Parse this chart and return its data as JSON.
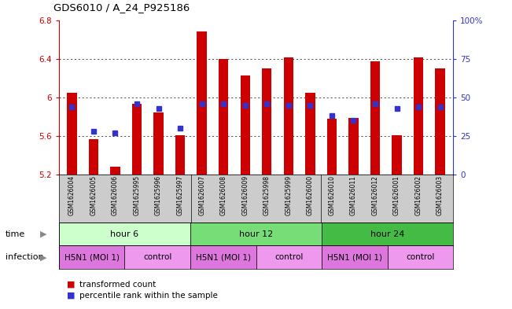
{
  "title": "GDS6010 / A_24_P925186",
  "samples": [
    "GSM1626004",
    "GSM1626005",
    "GSM1626006",
    "GSM1625995",
    "GSM1625996",
    "GSM1625997",
    "GSM1626007",
    "GSM1626008",
    "GSM1626009",
    "GSM1625998",
    "GSM1625999",
    "GSM1626000",
    "GSM1626010",
    "GSM1626011",
    "GSM1626012",
    "GSM1626001",
    "GSM1626002",
    "GSM1626003"
  ],
  "transformed_count": [
    6.05,
    5.57,
    5.28,
    5.93,
    5.84,
    5.61,
    6.68,
    6.4,
    6.23,
    6.3,
    6.41,
    6.05,
    5.78,
    5.79,
    6.37,
    5.61,
    6.41,
    6.3
  ],
  "percentile_rank": [
    44,
    28,
    27,
    46,
    43,
    30,
    46,
    46,
    45,
    46,
    45,
    45,
    38,
    35,
    46,
    43,
    44,
    44
  ],
  "ylim_left": [
    5.2,
    6.8
  ],
  "ylim_right": [
    0,
    100
  ],
  "yticks_left": [
    5.2,
    5.6,
    6.0,
    6.4,
    6.8
  ],
  "ytick_labels_left": [
    "5.2",
    "5.6",
    "6",
    "6.4",
    "6.8"
  ],
  "yticks_right": [
    0,
    25,
    50,
    75,
    100
  ],
  "ytick_labels_right": [
    "0",
    "25",
    "50",
    "75",
    "100%"
  ],
  "bar_color": "#cc0000",
  "dot_color": "#3333cc",
  "bar_width": 0.45,
  "group_colors": [
    "#ccffcc",
    "#77dd77",
    "#44bb44"
  ],
  "groups": [
    {
      "label": "hour 6",
      "start": 0,
      "end": 6
    },
    {
      "label": "hour 12",
      "start": 6,
      "end": 12
    },
    {
      "label": "hour 24",
      "start": 12,
      "end": 18
    }
  ],
  "inf_h5n1_color": "#dd77dd",
  "inf_ctrl_color": "#ee99ee",
  "infections": [
    {
      "label": "H5N1 (MOI 1)",
      "start": 0,
      "end": 3
    },
    {
      "label": "control",
      "start": 3,
      "end": 6
    },
    {
      "label": "H5N1 (MOI 1)",
      "start": 6,
      "end": 9
    },
    {
      "label": "control",
      "start": 9,
      "end": 12
    },
    {
      "label": "H5N1 (MOI 1)",
      "start": 12,
      "end": 15
    },
    {
      "label": "control",
      "start": 15,
      "end": 18
    }
  ],
  "time_label": "time",
  "infection_label": "infection",
  "legend_tc": "transformed count",
  "legend_pr": "percentile rank within the sample",
  "background_color": "#ffffff",
  "axis_color_left": "#cc0000",
  "axis_color_right": "#3333cc",
  "label_bg": "#cccccc"
}
